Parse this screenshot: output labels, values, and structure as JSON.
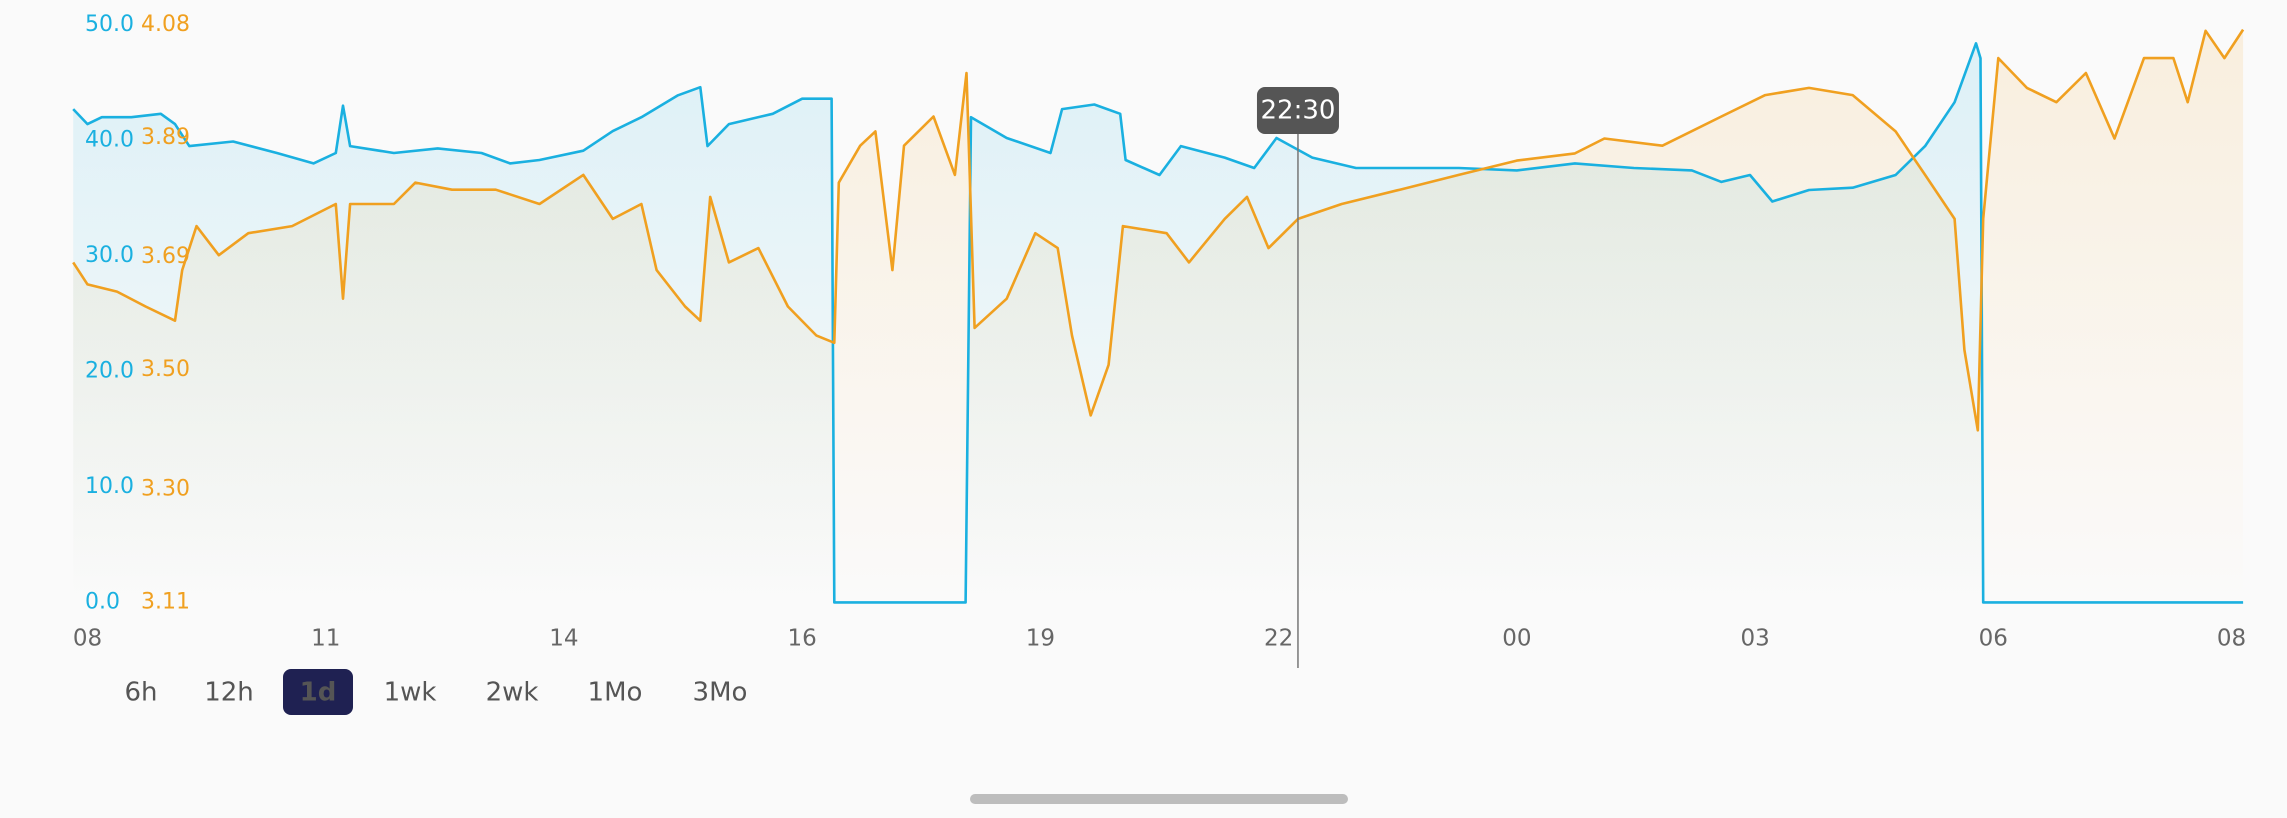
{
  "chart_data": {
    "type": "line",
    "xlim": [
      0,
      24
    ],
    "xticks": [
      {
        "value": 0,
        "label": "08"
      },
      {
        "value": 2.667,
        "label": "11"
      },
      {
        "value": 5.333,
        "label": "14"
      },
      {
        "value": 8,
        "label": "16"
      },
      {
        "value": 10.667,
        "label": "19"
      },
      {
        "value": 13.333,
        "label": "22"
      },
      {
        "value": 16,
        "label": "00"
      },
      {
        "value": 18.667,
        "label": "03"
      },
      {
        "value": 21.333,
        "label": "06"
      },
      {
        "value": 24,
        "label": "08"
      }
    ],
    "ylim": [
      0,
      50
    ],
    "yticks": [
      {
        "value": 0,
        "label": "0.0"
      },
      {
        "value": 10,
        "label": "10.0"
      },
      {
        "value": 20,
        "label": "20.0"
      },
      {
        "value": 30,
        "label": "30.0"
      },
      {
        "value": 40,
        "label": "40.0"
      },
      {
        "value": 50,
        "label": "50.0"
      }
    ],
    "y2lim": [
      3.11,
      4.08
    ],
    "y2ticks": [
      3.11,
      {
        "value": 3.3,
        "label": "3.30"
      },
      {
        "value": 3.5,
        "label": "3.50"
      },
      3.69,
      3.89,
      4.08
    ],
    "cursor": {
      "x": 13.55,
      "label": "22:30"
    },
    "series": [
      {
        "color": "#1ab0e0",
        "axis": "y",
        "x": [
          -0.16,
          0,
          0.16,
          0.49,
          0.82,
          0.98,
          1.14,
          1.63,
          2.12,
          2.53,
          2.78,
          2.86,
          2.94,
          3.43,
          3.92,
          4.41,
          4.73,
          5.06,
          5.55,
          5.88,
          6.2,
          6.61,
          6.86,
          6.94,
          7.18,
          7.67,
          8.0,
          8.33,
          8.36,
          9.83,
          9.89,
          10.29,
          10.78,
          10.91,
          11.27,
          11.56,
          11.62,
          12.0,
          12.24,
          12.73,
          13.06,
          13.31,
          13.71,
          14.2,
          14.69,
          15.35,
          16.0,
          16.65,
          17.31,
          17.96,
          18.29,
          18.61,
          18.86,
          19.27,
          19.76,
          20.24,
          20.57,
          20.9,
          21.14,
          21.19,
          21.22,
          24.13
        ],
        "values": [
          42.7,
          41.4,
          42,
          42,
          42.3,
          41.4,
          39.5,
          39.9,
          38.9,
          38,
          38.9,
          43,
          39.5,
          38.9,
          39.3,
          38.9,
          38,
          38.3,
          39.1,
          40.8,
          42,
          43.9,
          44.6,
          39.5,
          41.4,
          42.3,
          43.6,
          43.6,
          0,
          0,
          42,
          40.2,
          38.9,
          42.7,
          43.1,
          42.3,
          38.3,
          37,
          39.5,
          38.5,
          37.6,
          40.2,
          38.5,
          37.6,
          37.6,
          37.6,
          37.4,
          38,
          37.6,
          37.4,
          36.4,
          37,
          34.7,
          35.7,
          35.9,
          37,
          39.5,
          43.3,
          48.4,
          47.1,
          0,
          0
        ]
      },
      {
        "color": "#f0a020",
        "axis": "y2",
        "x": [
          -0.16,
          0,
          0.33,
          0.65,
          0.98,
          1.06,
          1.22,
          1.47,
          1.8,
          2.29,
          2.78,
          2.86,
          2.94,
          3.43,
          3.67,
          4.08,
          4.57,
          5.06,
          5.55,
          5.88,
          6.2,
          6.37,
          6.69,
          6.86,
          6.97,
          7.18,
          7.51,
          7.84,
          8.16,
          8.36,
          8.41,
          8.65,
          8.82,
          9.01,
          9.14,
          9.47,
          9.71,
          9.84,
          9.93,
          10.29,
          10.61,
          10.86,
          11.02,
          11.23,
          11.43,
          11.59,
          12.08,
          12.33,
          12.73,
          12.98,
          13.22,
          13.55,
          14.04,
          14.69,
          15.35,
          16.0,
          16.65,
          16.98,
          17.63,
          18.29,
          18.78,
          19.27,
          19.76,
          20.24,
          20.57,
          20.9,
          21.01,
          21.16,
          21.22,
          21.39,
          21.71,
          22.04,
          22.37,
          22.69,
          23.02,
          23.35,
          23.51,
          23.71,
          23.92,
          24.13
        ],
        "values": [
          3.681,
          3.644,
          3.632,
          3.607,
          3.583,
          3.668,
          3.742,
          3.693,
          3.73,
          3.742,
          3.779,
          3.62,
          3.779,
          3.779,
          3.815,
          3.803,
          3.803,
          3.779,
          3.828,
          3.754,
          3.779,
          3.668,
          3.607,
          3.583,
          3.791,
          3.681,
          3.705,
          3.607,
          3.558,
          3.546,
          3.815,
          3.877,
          3.901,
          3.668,
          3.877,
          3.926,
          3.828,
          3.999,
          3.571,
          3.62,
          3.73,
          3.705,
          3.558,
          3.424,
          3.509,
          3.742,
          3.73,
          3.681,
          3.754,
          3.791,
          3.705,
          3.754,
          3.779,
          3.803,
          3.828,
          3.852,
          3.864,
          3.889,
          3.877,
          3.926,
          3.962,
          3.974,
          3.962,
          3.901,
          3.828,
          3.754,
          3.534,
          3.399,
          3.754,
          4.024,
          3.974,
          3.95,
          3.999,
          3.889,
          4.024,
          4.024,
          3.95,
          4.07,
          4.024,
          4.072
        ]
      }
    ],
    "ranges": [
      "6h",
      "12h",
      "1d",
      "1wk",
      "2wk",
      "1Mo",
      "3Mo"
    ],
    "selected_range": "1d"
  }
}
